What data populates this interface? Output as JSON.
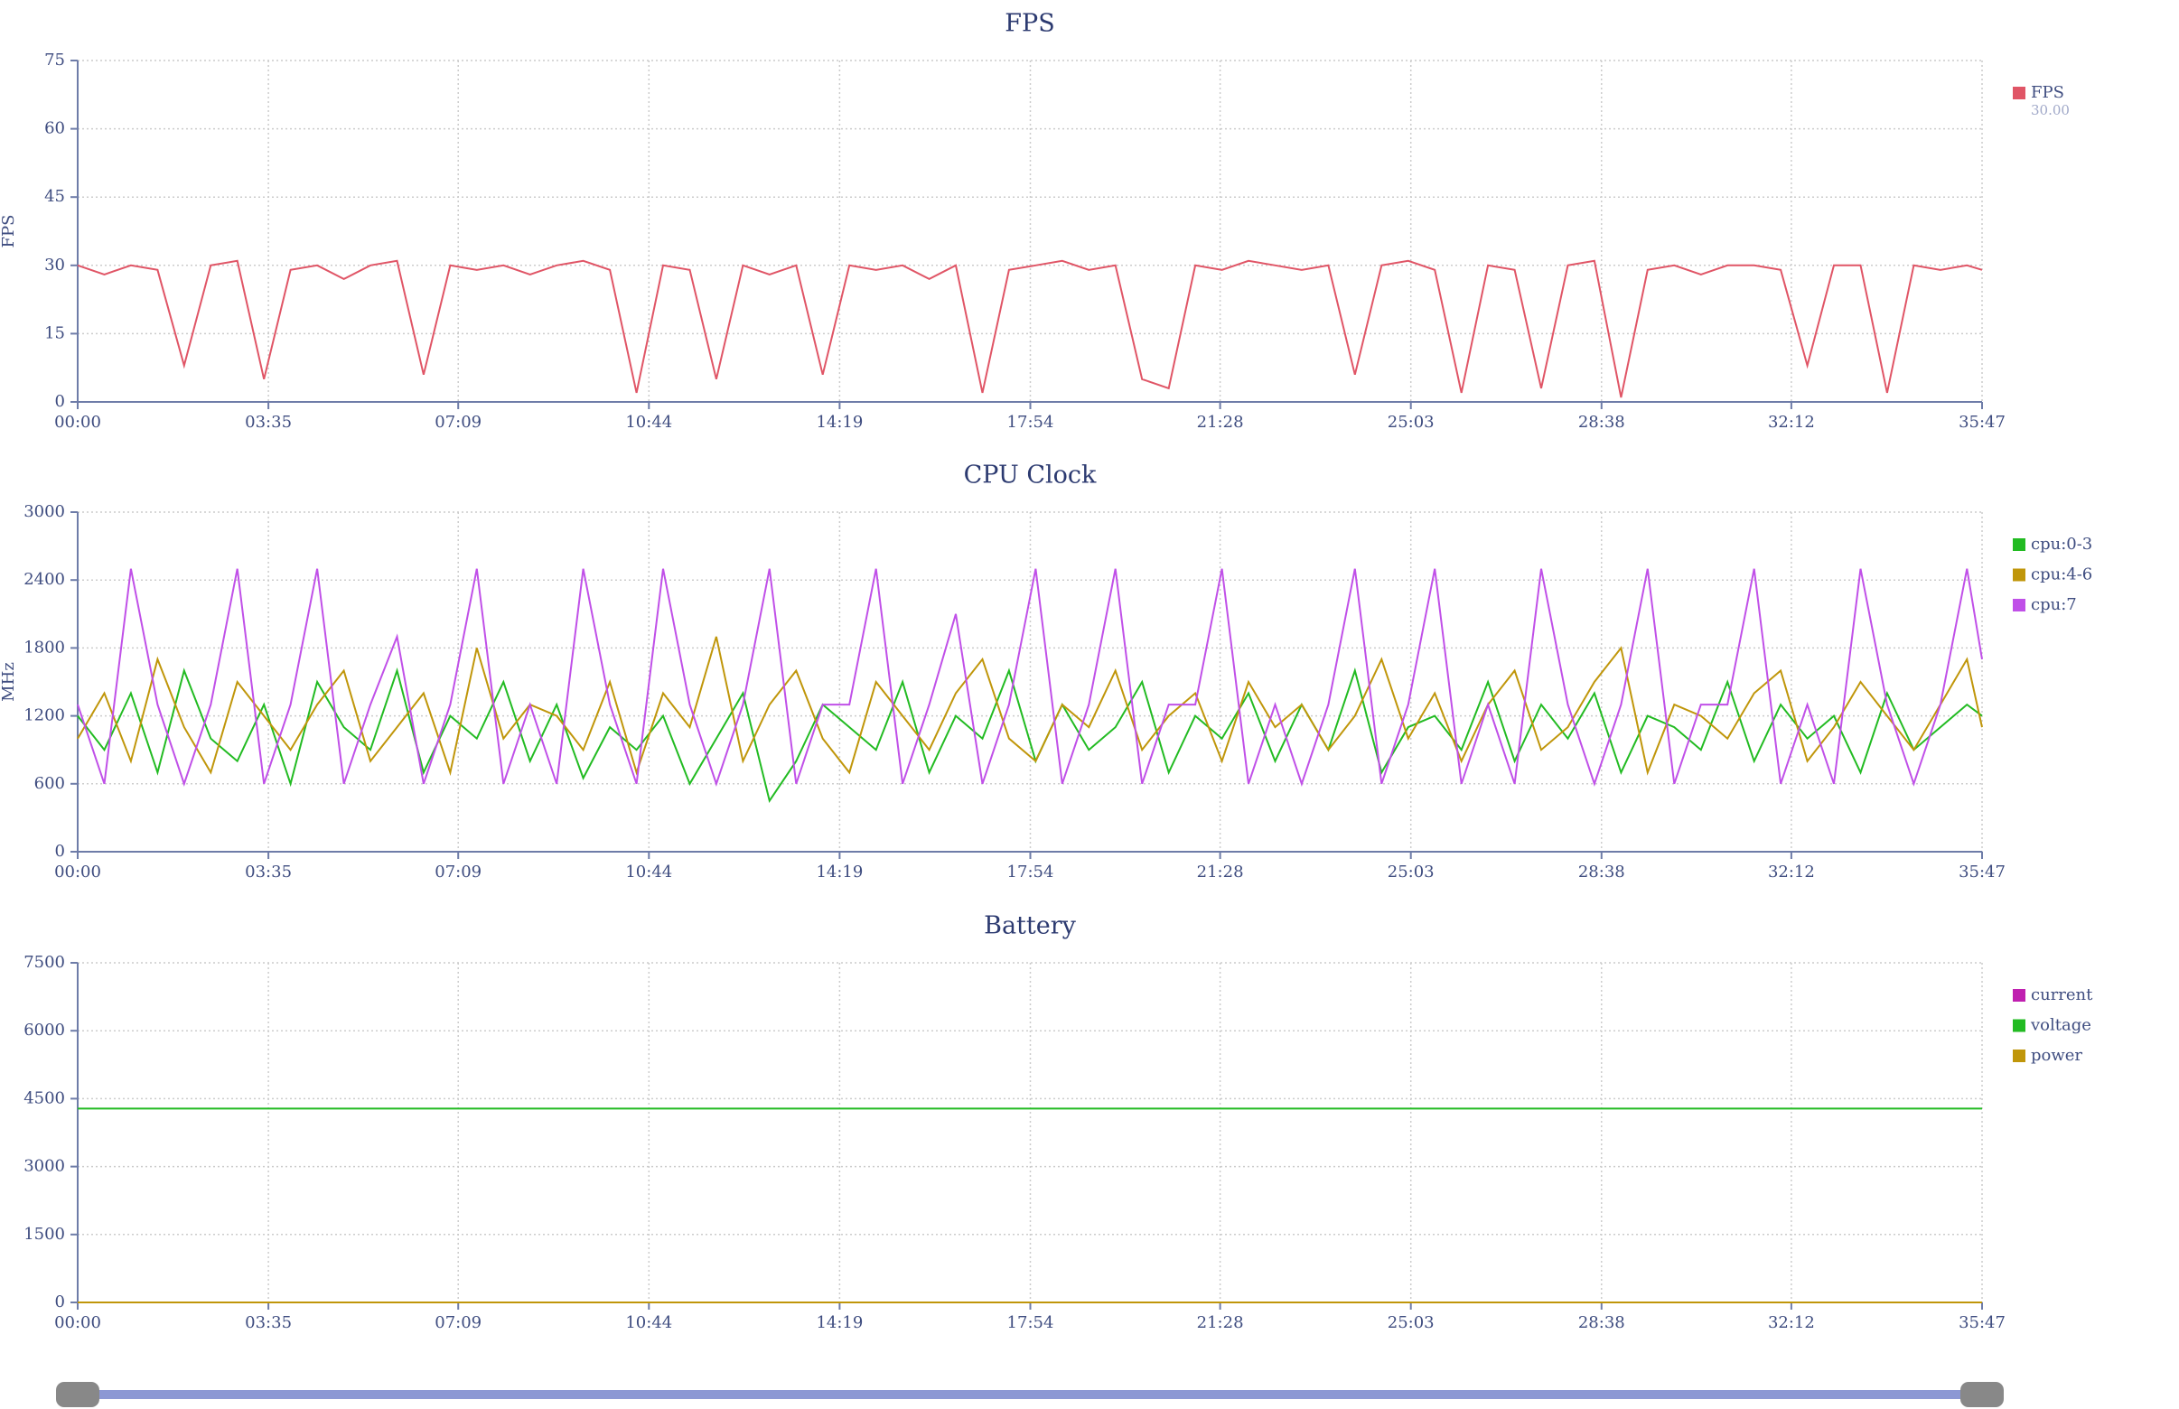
{
  "chart_data": [
    {
      "type": "line",
      "title": "FPS",
      "ylabel": "FPS",
      "grid": true,
      "legend": "right",
      "x": [
        0,
        30,
        60,
        90,
        120,
        150,
        180,
        210,
        240,
        270,
        300,
        330,
        360,
        390,
        420,
        450,
        480,
        510,
        540,
        570,
        600,
        630,
        660,
        690,
        720,
        750,
        780,
        810,
        840,
        870,
        900,
        930,
        960,
        990,
        1020,
        1050,
        1080,
        1110,
        1140,
        1170,
        1200,
        1230,
        1260,
        1290,
        1320,
        1350,
        1380,
        1410,
        1440,
        1470,
        1500,
        1530,
        1560,
        1590,
        1620,
        1650,
        1680,
        1710,
        1740,
        1770,
        1800,
        1830,
        1860,
        1890,
        1920,
        1950,
        1980,
        2010,
        2040,
        2070,
        2100,
        2130,
        2147
      ],
      "xlim": [
        0,
        2147
      ],
      "xticks": [
        {
          "value": 0,
          "label": "00:00"
        },
        {
          "value": 215,
          "label": "03:35"
        },
        {
          "value": 429,
          "label": "07:09"
        },
        {
          "value": 644,
          "label": "10:44"
        },
        {
          "value": 859,
          "label": "14:19"
        },
        {
          "value": 1074,
          "label": "17:54"
        },
        {
          "value": 1288,
          "label": "21:28"
        },
        {
          "value": 1503,
          "label": "25:03"
        },
        {
          "value": 1718,
          "label": "28:38"
        },
        {
          "value": 1932,
          "label": "32:12"
        },
        {
          "value": 2147,
          "label": "35:47"
        }
      ],
      "ylim": [
        0,
        75
      ],
      "yticks": [
        0,
        15,
        30,
        45,
        60,
        75
      ],
      "series": [
        {
          "name": "FPS",
          "color": "#e05566",
          "legend_value": "30.00",
          "values": [
            30,
            28,
            30,
            29,
            8,
            30,
            31,
            5,
            29,
            30,
            27,
            30,
            31,
            6,
            30,
            29,
            30,
            28,
            30,
            31,
            29,
            2,
            30,
            29,
            5,
            30,
            28,
            30,
            6,
            30,
            29,
            30,
            27,
            30,
            2,
            29,
            30,
            31,
            29,
            30,
            5,
            3,
            30,
            29,
            31,
            30,
            29,
            30,
            6,
            30,
            31,
            29,
            2,
            30,
            29,
            3,
            30,
            31,
            1,
            29,
            30,
            28,
            30,
            30,
            29,
            8,
            30,
            30,
            2,
            30,
            29,
            30,
            29
          ]
        }
      ]
    },
    {
      "type": "line",
      "title": "CPU Clock",
      "ylabel": "MHz",
      "grid": true,
      "legend": "right",
      "x": [
        0,
        30,
        60,
        90,
        120,
        150,
        180,
        210,
        240,
        270,
        300,
        330,
        360,
        390,
        420,
        450,
        480,
        510,
        540,
        570,
        600,
        630,
        660,
        690,
        720,
        750,
        780,
        810,
        840,
        870,
        900,
        930,
        960,
        990,
        1020,
        1050,
        1080,
        1110,
        1140,
        1170,
        1200,
        1230,
        1260,
        1290,
        1320,
        1350,
        1380,
        1410,
        1440,
        1470,
        1500,
        1530,
        1560,
        1590,
        1620,
        1650,
        1680,
        1710,
        1740,
        1770,
        1800,
        1830,
        1860,
        1890,
        1920,
        1950,
        1980,
        2010,
        2040,
        2070,
        2100,
        2130,
        2147
      ],
      "xlim": [
        0,
        2147
      ],
      "xticks": [
        {
          "value": 0,
          "label": "00:00"
        },
        {
          "value": 215,
          "label": "03:35"
        },
        {
          "value": 429,
          "label": "07:09"
        },
        {
          "value": 644,
          "label": "10:44"
        },
        {
          "value": 859,
          "label": "14:19"
        },
        {
          "value": 1074,
          "label": "17:54"
        },
        {
          "value": 1288,
          "label": "21:28"
        },
        {
          "value": 1503,
          "label": "25:03"
        },
        {
          "value": 1718,
          "label": "28:38"
        },
        {
          "value": 1932,
          "label": "32:12"
        },
        {
          "value": 2147,
          "label": "35:47"
        }
      ],
      "ylim": [
        0,
        3000
      ],
      "yticks": [
        0,
        600,
        1200,
        1800,
        2400,
        3000
      ],
      "series": [
        {
          "name": "cpu:0-3",
          "color": "#22bb22",
          "values": [
            1200,
            900,
            1400,
            700,
            1600,
            1000,
            800,
            1300,
            600,
            1500,
            1100,
            900,
            1600,
            700,
            1200,
            1000,
            1500,
            800,
            1300,
            650,
            1100,
            900,
            1200,
            600,
            1000,
            1400,
            450,
            800,
            1300,
            1100,
            900,
            1500,
            700,
            1200,
            1000,
            1600,
            800,
            1300,
            900,
            1100,
            1500,
            700,
            1200,
            1000,
            1400,
            800,
            1300,
            900,
            1600,
            700,
            1100,
            1200,
            900,
            1500,
            800,
            1300,
            1000,
            1400,
            700,
            1200,
            1100,
            900,
            1500,
            800,
            1300,
            1000,
            1200,
            700,
            1400,
            900,
            1100,
            1300,
            1200
          ]
        },
        {
          "name": "cpu:4-6",
          "color": "#c0960a",
          "values": [
            1000,
            1400,
            800,
            1700,
            1100,
            700,
            1500,
            1200,
            900,
            1300,
            1600,
            800,
            1100,
            1400,
            700,
            1800,
            1000,
            1300,
            1200,
            900,
            1500,
            700,
            1400,
            1100,
            1900,
            800,
            1300,
            1600,
            1000,
            700,
            1500,
            1200,
            900,
            1400,
            1700,
            1000,
            800,
            1300,
            1100,
            1600,
            900,
            1200,
            1400,
            800,
            1500,
            1100,
            1300,
            900,
            1200,
            1700,
            1000,
            1400,
            800,
            1300,
            1600,
            900,
            1100,
            1500,
            1800,
            700,
            1300,
            1200,
            1000,
            1400,
            1600,
            800,
            1100,
            1500,
            1200,
            900,
            1300,
            1700,
            1100
          ]
        },
        {
          "name": "cpu:7",
          "color": "#c050e8",
          "values": [
            1300,
            600,
            2500,
            1300,
            600,
            1300,
            2500,
            600,
            1300,
            2500,
            600,
            1300,
            1900,
            600,
            1300,
            2500,
            600,
            1300,
            600,
            2500,
            1300,
            600,
            2500,
            1300,
            600,
            1300,
            2500,
            600,
            1300,
            1300,
            2500,
            600,
            1300,
            2100,
            600,
            1300,
            2500,
            600,
            1300,
            2500,
            600,
            1300,
            1300,
            2500,
            600,
            1300,
            600,
            1300,
            2500,
            600,
            1300,
            2500,
            600,
            1300,
            600,
            2500,
            1300,
            600,
            1300,
            2500,
            600,
            1300,
            1300,
            2500,
            600,
            1300,
            600,
            2500,
            1300,
            600,
            1300,
            2500,
            1700
          ]
        }
      ]
    },
    {
      "type": "line",
      "title": "Battery",
      "grid": true,
      "legend": "right",
      "x": [
        0,
        2147
      ],
      "xlim": [
        0,
        2147
      ],
      "xticks": [
        {
          "value": 0,
          "label": "00:00"
        },
        {
          "value": 215,
          "label": "03:35"
        },
        {
          "value": 429,
          "label": "07:09"
        },
        {
          "value": 644,
          "label": "10:44"
        },
        {
          "value": 859,
          "label": "14:19"
        },
        {
          "value": 1074,
          "label": "17:54"
        },
        {
          "value": 1288,
          "label": "21:28"
        },
        {
          "value": 1503,
          "label": "25:03"
        },
        {
          "value": 1718,
          "label": "28:38"
        },
        {
          "value": 1932,
          "label": "32:12"
        },
        {
          "value": 2147,
          "label": "35:47"
        }
      ],
      "ylim": [
        0,
        7500
      ],
      "yticks": [
        0,
        1500,
        3000,
        4500,
        6000,
        7500
      ],
      "series": [
        {
          "name": "current",
          "color": "#c020b0",
          "values": [
            0,
            0
          ]
        },
        {
          "name": "voltage",
          "color": "#22bb22",
          "values": [
            4280,
            4280
          ]
        },
        {
          "name": "power",
          "color": "#c0960a",
          "values": [
            0,
            0
          ]
        }
      ]
    }
  ]
}
